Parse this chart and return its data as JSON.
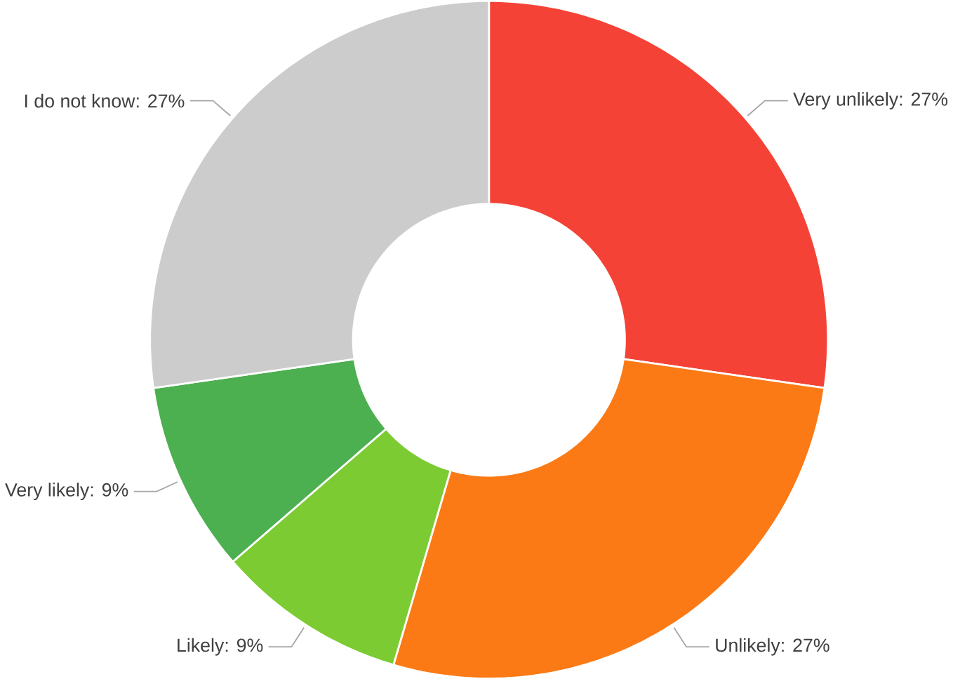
{
  "chart_data": {
    "type": "donut",
    "categories": [
      "Very unlikely",
      "Unlikely",
      "Likely",
      "Very likely",
      "I do not know"
    ],
    "values": [
      27,
      27,
      9,
      9,
      27
    ],
    "colors": [
      "#f44336",
      "#fb7a15",
      "#7ccb33",
      "#4caf50",
      "#cccccc"
    ],
    "value_labels": [
      ": 27%",
      ": 27%",
      ": 9%",
      ": 9%",
      ": 27%"
    ]
  }
}
